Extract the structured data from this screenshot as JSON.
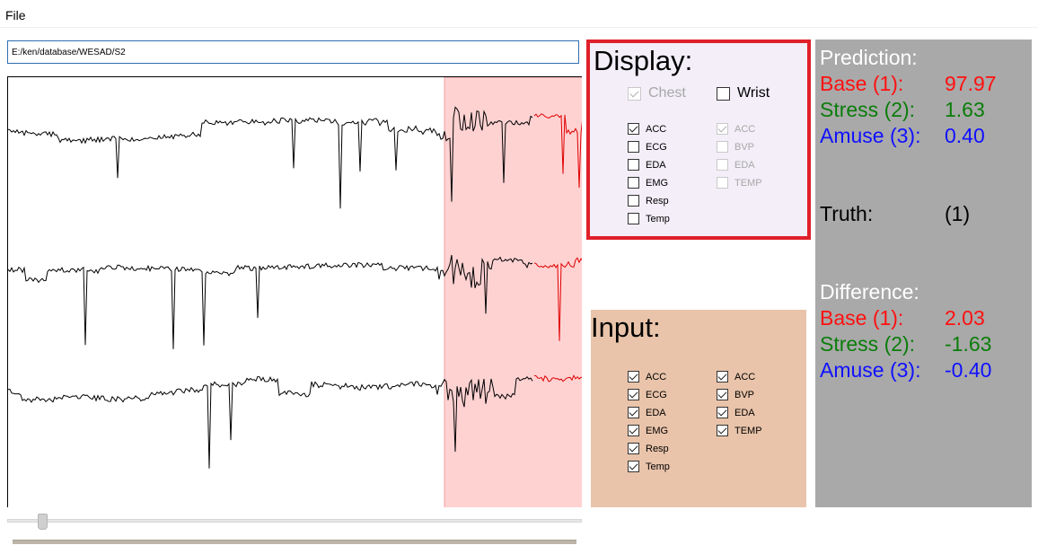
{
  "menu": {
    "file": "File"
  },
  "path_input": {
    "value": "E:/ken/database/WESAD/S2"
  },
  "plot": {
    "highlight_color": "#ffd2d2",
    "trace_color_base": "#000000",
    "trace_color_predicted": "#e00000",
    "channels": 3
  },
  "slider": {
    "value": 0.06
  },
  "display": {
    "title": "Display:",
    "chest": {
      "label": "Chest",
      "checked": true,
      "enabled": false
    },
    "wrist": {
      "label": "Wrist",
      "checked": false,
      "enabled": true
    },
    "chest_sensors": [
      {
        "label": "ACC",
        "checked": true
      },
      {
        "label": "ECG",
        "checked": false
      },
      {
        "label": "EDA",
        "checked": false
      },
      {
        "label": "EMG",
        "checked": false
      },
      {
        "label": "Resp",
        "checked": false
      },
      {
        "label": "Temp",
        "checked": false
      }
    ],
    "wrist_sensors": [
      {
        "label": "ACC",
        "checked": true
      },
      {
        "label": "BVP",
        "checked": false
      },
      {
        "label": "EDA",
        "checked": false
      },
      {
        "label": "TEMP",
        "checked": false
      }
    ]
  },
  "input": {
    "title": "Input:",
    "chest_sensors": [
      {
        "label": "ACC",
        "checked": true
      },
      {
        "label": "ECG",
        "checked": true
      },
      {
        "label": "EDA",
        "checked": true
      },
      {
        "label": "EMG",
        "checked": true
      },
      {
        "label": "Resp",
        "checked": true
      },
      {
        "label": "Temp",
        "checked": true
      }
    ],
    "wrist_sensors": [
      {
        "label": "ACC",
        "checked": true
      },
      {
        "label": "BVP",
        "checked": true
      },
      {
        "label": "EDA",
        "checked": true
      },
      {
        "label": "TEMP",
        "checked": true
      }
    ]
  },
  "prediction": {
    "title": "Prediction:",
    "base": {
      "label": "Base (1):",
      "value": "97.97"
    },
    "stress": {
      "label": "Stress (2):",
      "value": "1.63"
    },
    "amuse": {
      "label": "Amuse (3):",
      "value": "0.40"
    }
  },
  "truth": {
    "label": "Truth:",
    "value": "(1)"
  },
  "difference": {
    "title": "Difference:",
    "base": {
      "label": "Base (1):",
      "value": "2.03"
    },
    "stress": {
      "label": "Stress (2):",
      "value": "-1.63"
    },
    "amuse": {
      "label": "Amuse (3):",
      "value": "-0.40"
    }
  }
}
